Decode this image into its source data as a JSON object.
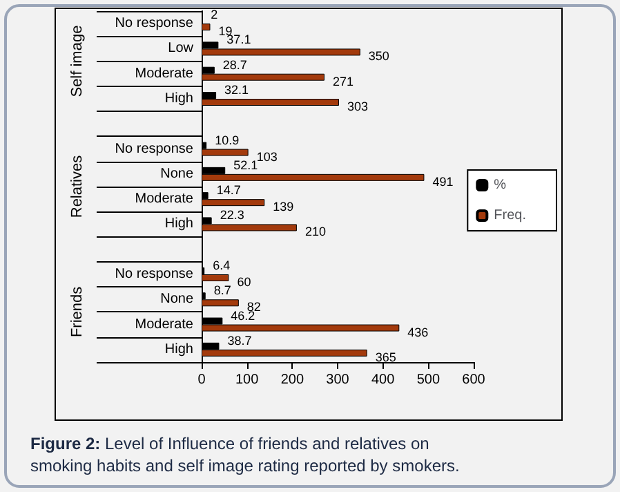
{
  "chart_data": {
    "type": "bar",
    "orientation": "horizontal",
    "title": "Figure 2: Level of Influence of friends and relatives on smoking habits and self image rating reported by smokers.",
    "categories": [
      "No response",
      "Low",
      "Moderate",
      "High",
      null,
      "No response",
      "None",
      "Moderate",
      "High",
      null,
      "No response",
      "None",
      "Moderate",
      "High"
    ],
    "series": [
      {
        "name": "%",
        "color": "#000000",
        "values": [
          2,
          37.1,
          28.7,
          32.1,
          null,
          10.9,
          52.1,
          14.7,
          22.3,
          null,
          6.4,
          8.7,
          46.2,
          38.7
        ]
      },
      {
        "name": "Freq.",
        "color": "#a33a0c",
        "values": [
          19,
          350,
          271,
          303,
          null,
          103,
          491,
          139,
          210,
          null,
          60,
          82,
          436,
          365
        ]
      }
    ],
    "xlim": [
      0,
      600
    ],
    "xticks": [
      0,
      100,
      200,
      300,
      400,
      500,
      600
    ],
    "annotations": [
      "Self image",
      "Relatives",
      "Friends"
    ],
    "data_labels": true,
    "grid": false,
    "legend": "right"
  }
}
